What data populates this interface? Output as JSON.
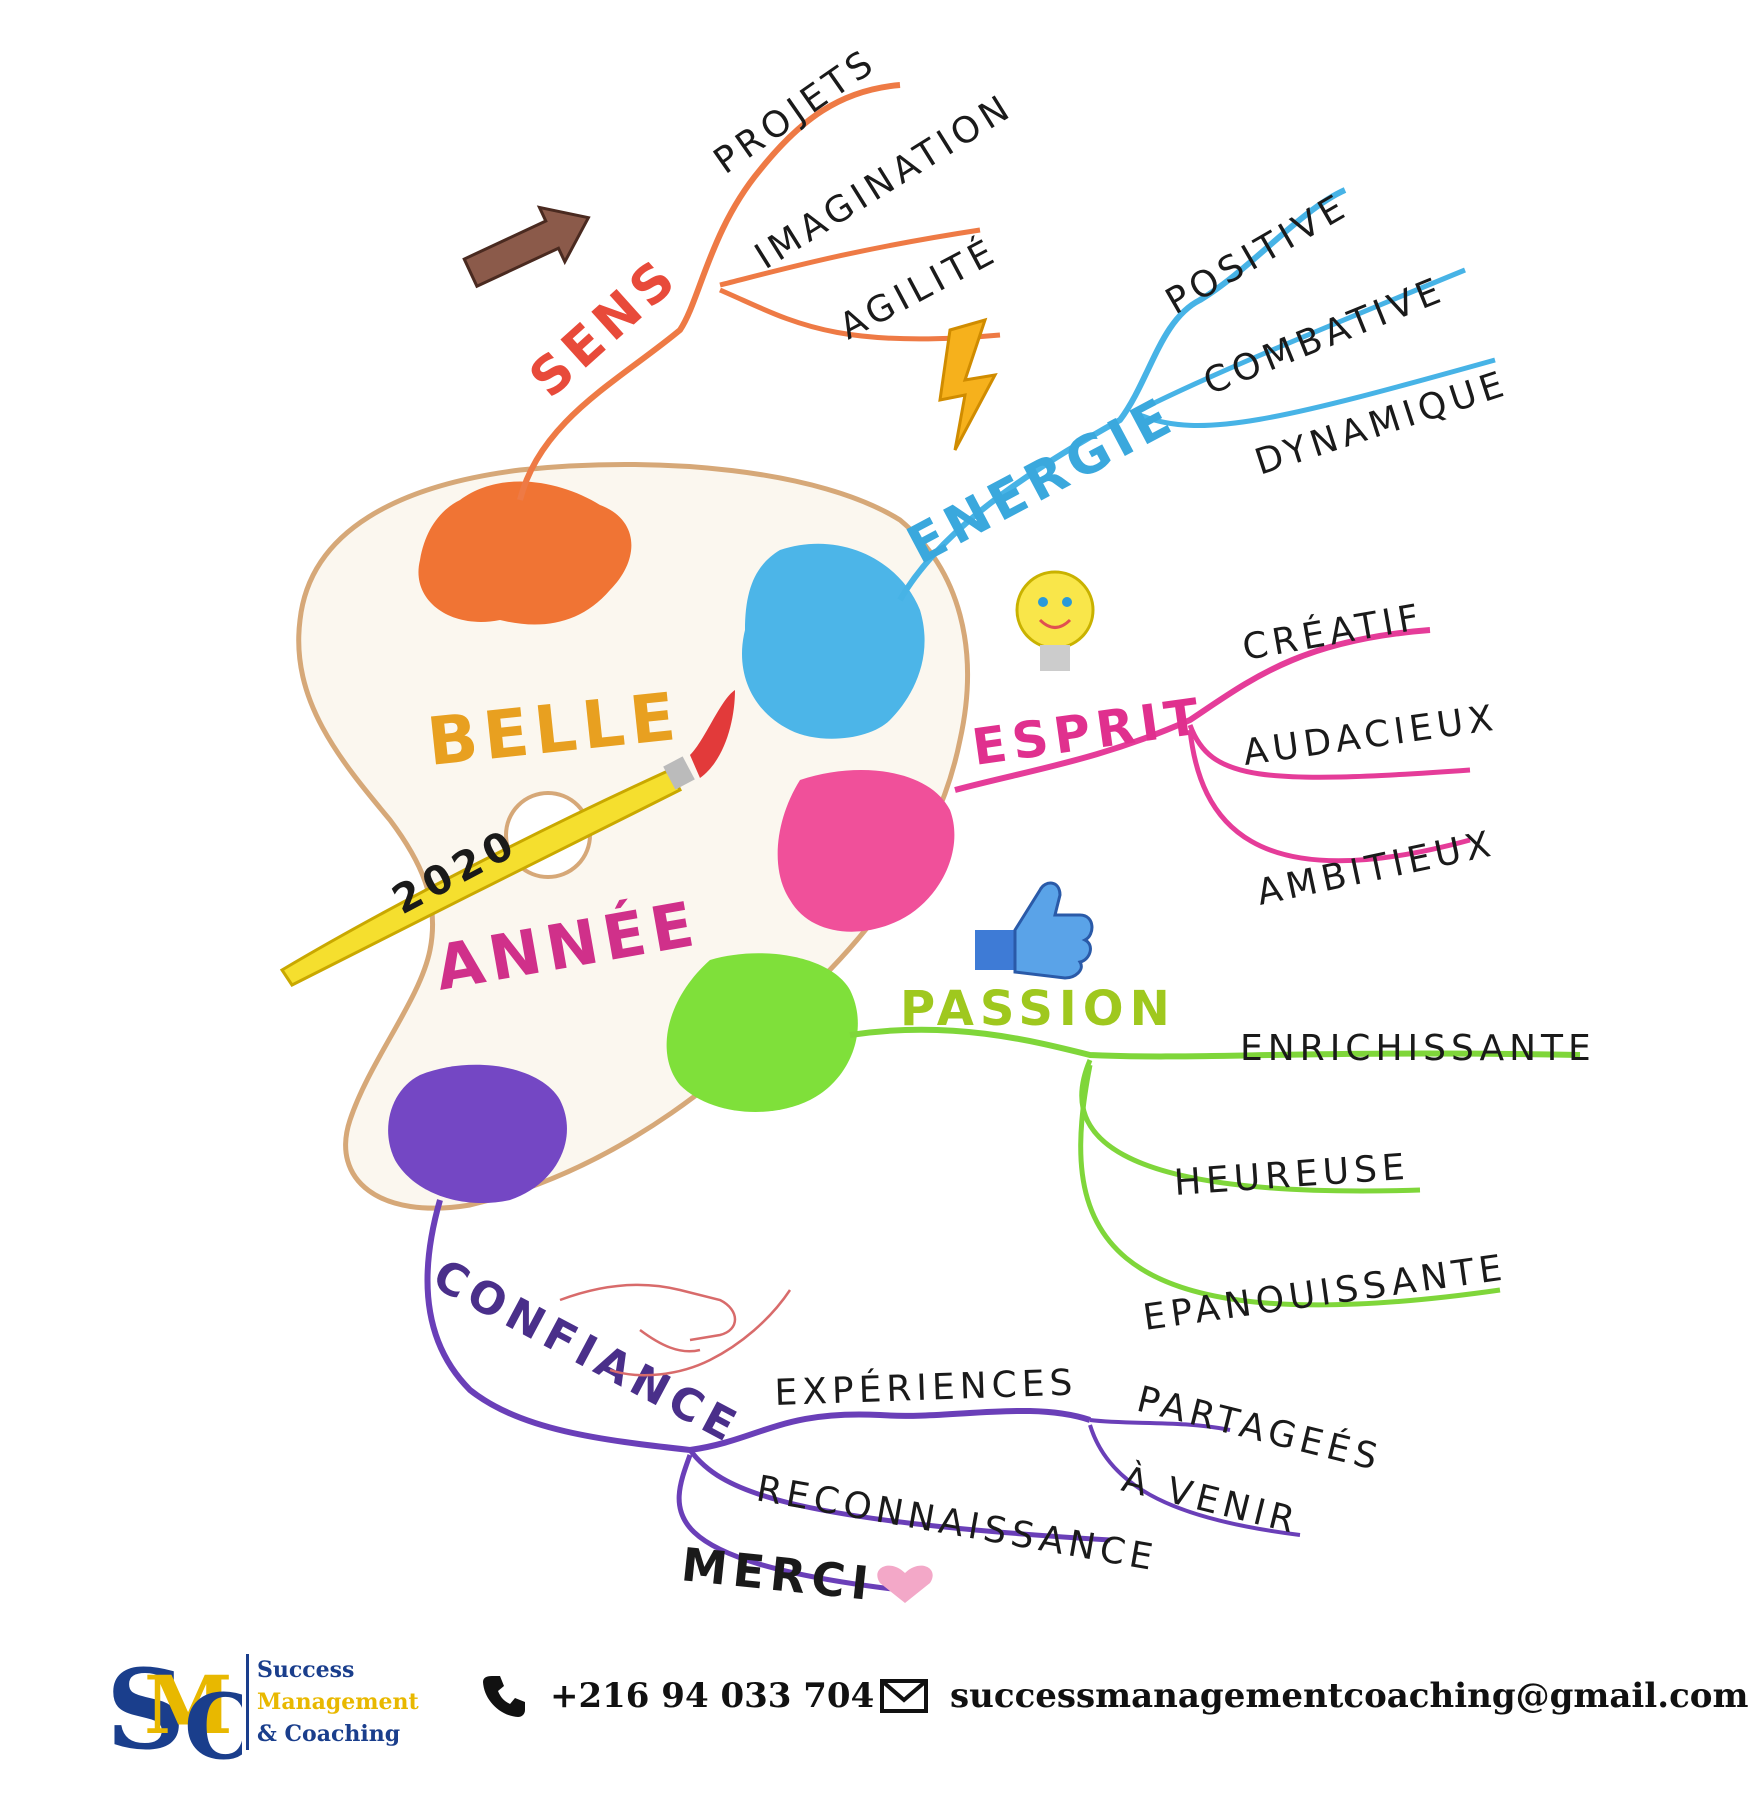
{
  "center": {
    "line1": "BELLE",
    "year": "2020",
    "line2": "ANNÉE"
  },
  "branches": {
    "sens": {
      "label": "SENS",
      "color": "#ee7a45",
      "children": [
        "PROJETS",
        "IMAGINATION",
        "AGILITÉ"
      ]
    },
    "energie": {
      "label": "ENERGIE",
      "color": "#47b3e6",
      "children": [
        "POSITIVE",
        "COMBATIVE",
        "DYNAMIQUE"
      ]
    },
    "esprit": {
      "label": "ESPRIT",
      "color": "#e53c99",
      "children": [
        "CRÉATIF",
        "AUDACIEUX",
        "AMBITIEUX"
      ]
    },
    "passion": {
      "label": "PASSION",
      "color": "#7fd63a",
      "children": [
        "ENRICHISSANTE",
        "HEUREUSE",
        "EPANOUISSANTE"
      ]
    },
    "confiance": {
      "label": "CONFIANCE",
      "color": "#6a3fb8",
      "children": [
        "EXPÉRIENCES",
        "RECONNAISSANCE",
        "MERCI"
      ],
      "sub": [
        "PARTAGEÉS",
        "À VENIR"
      ]
    }
  },
  "footer": {
    "brand": {
      "monogram": "SMC",
      "line1": "Success",
      "line2": "Management",
      "line3": "& Coaching"
    },
    "phone": "+216 94 033 704",
    "email": "successmanagementcoaching@gmail.com",
    "colors": {
      "navy": "#1a3e8c",
      "gold": "#e8b800"
    }
  }
}
